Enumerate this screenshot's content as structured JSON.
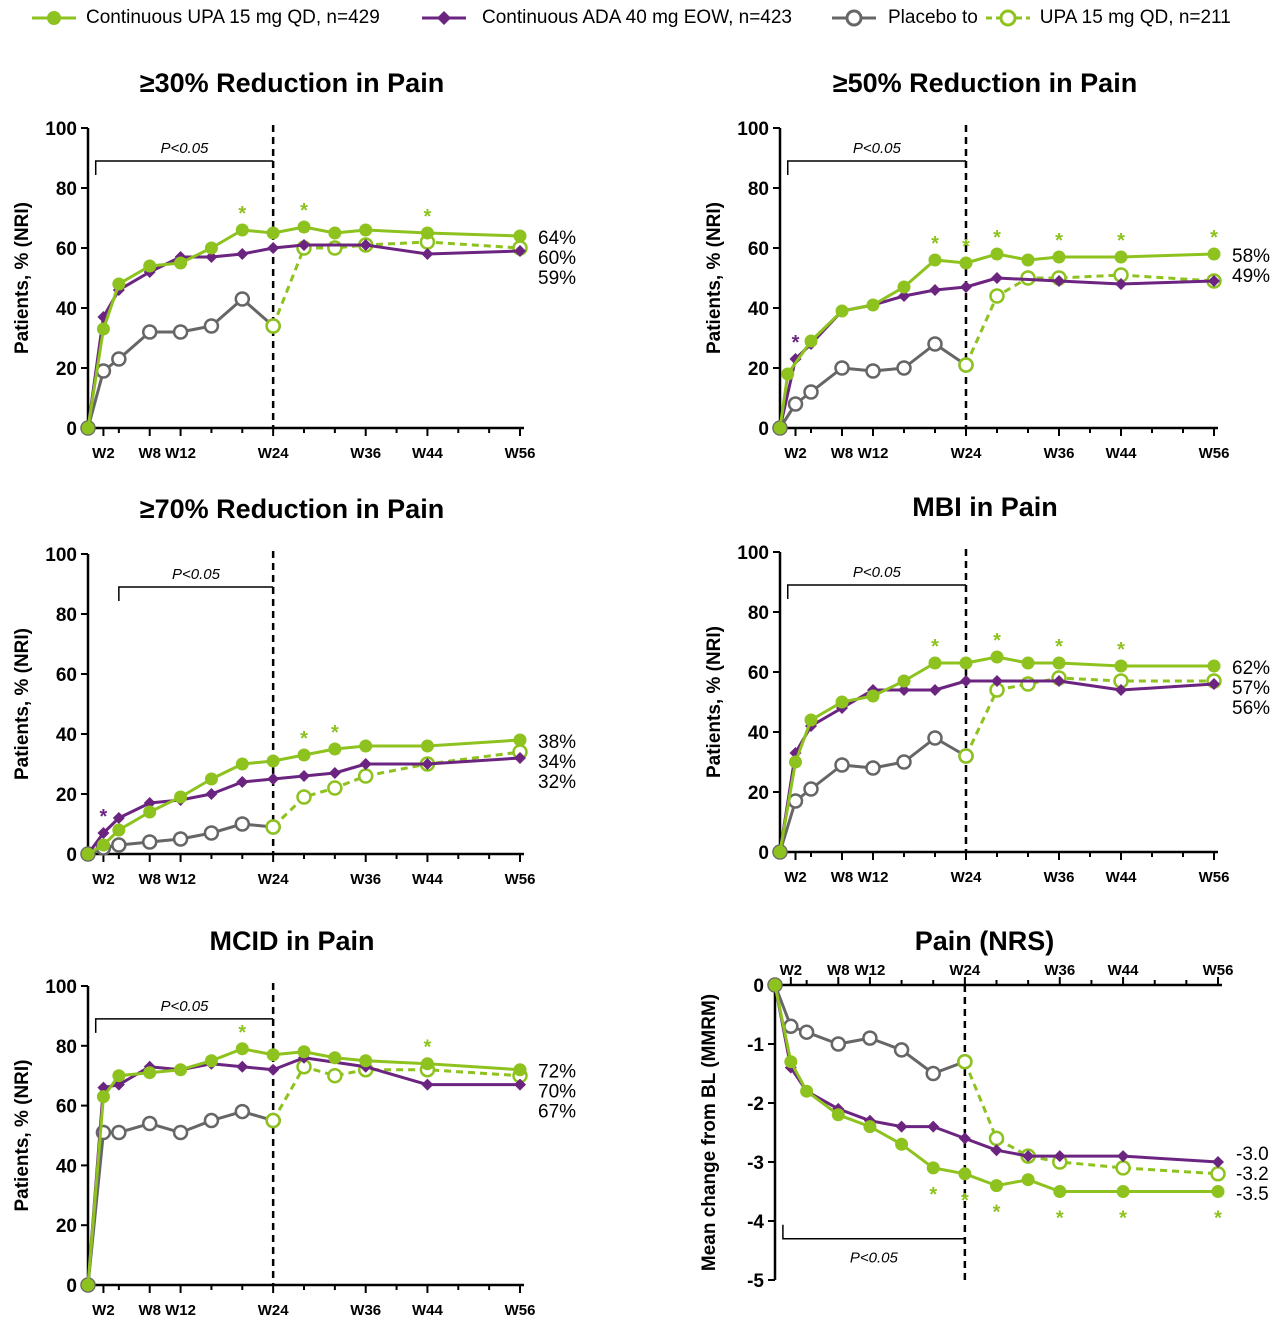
{
  "colors": {
    "upa": "#8dc21f",
    "ada": "#6b2480",
    "pbo": "#666666",
    "axis": "#000000"
  },
  "legend": {
    "upa": "Continuous UPA 15 mg QD, n=429",
    "ada": "Continuous ADA 40 mg EOW, n=423",
    "pbo_prefix": "Placebo to",
    "pbo_suffix": "UPA 15 mg QD, n=211"
  },
  "chart_data": [
    {
      "type": "line",
      "title": "≥30% Reduction in Pain",
      "ylabel": "Patients, % (NRI)",
      "ylim": [
        0,
        100
      ],
      "yticks": [
        0,
        20,
        40,
        60,
        80,
        100
      ],
      "xticks": [
        {
          "w": 2,
          "label": "W2"
        },
        {
          "w": 8,
          "label": "W8"
        },
        {
          "w": 12,
          "label": "W12"
        },
        {
          "w": 24,
          "label": "W24"
        },
        {
          "w": 36,
          "label": "W36"
        },
        {
          "w": 44,
          "label": "W44"
        },
        {
          "w": 56,
          "label": "W56"
        }
      ],
      "pvalue": {
        "text": "P<0.05",
        "from": 1,
        "to": 24
      },
      "series": [
        {
          "name": "Continuous UPA 15 mg QD",
          "x": [
            0,
            2,
            4,
            8,
            12,
            16,
            20,
            24,
            28,
            32,
            36,
            44,
            56
          ],
          "y": [
            0,
            33,
            48,
            54,
            55,
            60,
            66,
            65,
            67,
            65,
            66,
            65,
            64
          ]
        },
        {
          "name": "Continuous ADA 40 mg EOW",
          "x": [
            0,
            2,
            4,
            8,
            12,
            16,
            20,
            24,
            28,
            36,
            44,
            56
          ],
          "y": [
            0,
            37,
            46,
            52,
            57,
            57,
            58,
            60,
            61,
            61,
            58,
            59
          ]
        },
        {
          "name": "Placebo",
          "x": [
            0,
            2,
            4,
            8,
            12,
            16,
            20,
            24
          ],
          "y": [
            0,
            19,
            23,
            32,
            32,
            34,
            43,
            34
          ]
        },
        {
          "name": "UPA 15 mg QD (from placebo)",
          "x": [
            24,
            28,
            32,
            36,
            44,
            56
          ],
          "y": [
            34,
            60,
            60,
            61,
            62,
            60
          ]
        }
      ],
      "end_labels": [
        "64%",
        "60%",
        "59%"
      ],
      "stars": [
        {
          "x": 20,
          "y": 66,
          "series": "upa"
        },
        {
          "x": 28,
          "y": 67,
          "series": "upa"
        },
        {
          "x": 44,
          "y": 65,
          "series": "upa"
        }
      ]
    },
    {
      "type": "line",
      "title": "≥50% Reduction in Pain",
      "ylabel": "Patients, % (NRI)",
      "ylim": [
        0,
        100
      ],
      "yticks": [
        0,
        20,
        40,
        60,
        80,
        100
      ],
      "xticks": [
        {
          "w": 2,
          "label": "W2"
        },
        {
          "w": 8,
          "label": "W8"
        },
        {
          "w": 12,
          "label": "W12"
        },
        {
          "w": 24,
          "label": "W24"
        },
        {
          "w": 36,
          "label": "W36"
        },
        {
          "w": 44,
          "label": "W44"
        },
        {
          "w": 56,
          "label": "W56"
        }
      ],
      "pvalue": {
        "text": "P<0.05",
        "from": 1,
        "to": 24
      },
      "series": [
        {
          "name": "Continuous UPA 15 mg QD",
          "x": [
            0,
            1,
            4,
            8,
            12,
            16,
            20,
            24,
            28,
            32,
            36,
            44,
            56
          ],
          "y": [
            0,
            18,
            29,
            39,
            41,
            47,
            56,
            55,
            58,
            56,
            57,
            57,
            58
          ]
        },
        {
          "name": "Continuous ADA 40 mg EOW",
          "x": [
            0,
            2,
            4,
            8,
            12,
            16,
            20,
            24,
            28,
            36,
            44,
            56
          ],
          "y": [
            0,
            23,
            28,
            39,
            41,
            44,
            46,
            47,
            50,
            49,
            48,
            49
          ]
        },
        {
          "name": "Placebo",
          "x": [
            0,
            2,
            4,
            8,
            12,
            16,
            20,
            24
          ],
          "y": [
            0,
            8,
            12,
            20,
            19,
            20,
            28,
            21
          ]
        },
        {
          "name": "UPA 15 mg QD (from placebo)",
          "x": [
            24,
            28,
            32,
            36,
            44,
            56
          ],
          "y": [
            21,
            44,
            50,
            50,
            51,
            49
          ]
        }
      ],
      "end_labels": [
        "58%",
        "49%"
      ],
      "stars": [
        {
          "x": 2,
          "y": 23,
          "series": "ada"
        },
        {
          "x": 20,
          "y": 56,
          "series": "upa"
        },
        {
          "x": 24,
          "y": 55,
          "series": "upa"
        },
        {
          "x": 28,
          "y": 58,
          "series": "upa"
        },
        {
          "x": 36,
          "y": 57,
          "series": "upa"
        },
        {
          "x": 44,
          "y": 57,
          "series": "upa"
        },
        {
          "x": 56,
          "y": 58,
          "series": "upa"
        }
      ]
    },
    {
      "type": "line",
      "title": "≥70% Reduction in Pain",
      "ylabel": "Patients, % (NRI)",
      "ylim": [
        0,
        100
      ],
      "yticks": [
        0,
        20,
        40,
        60,
        80,
        100
      ],
      "xticks": [
        {
          "w": 2,
          "label": "W2"
        },
        {
          "w": 8,
          "label": "W8"
        },
        {
          "w": 12,
          "label": "W12"
        },
        {
          "w": 24,
          "label": "W24"
        },
        {
          "w": 36,
          "label": "W36"
        },
        {
          "w": 44,
          "label": "W44"
        },
        {
          "w": 56,
          "label": "W56"
        }
      ],
      "pvalue": {
        "text": "P<0.05",
        "from": 4,
        "to": 24
      },
      "series": [
        {
          "name": "Continuous UPA 15 mg QD",
          "x": [
            0,
            2,
            4,
            8,
            12,
            16,
            20,
            24,
            28,
            32,
            36,
            44,
            56
          ],
          "y": [
            0,
            3,
            8,
            14,
            19,
            25,
            30,
            31,
            33,
            35,
            36,
            36,
            38
          ]
        },
        {
          "name": "Continuous ADA 40 mg EOW",
          "x": [
            0,
            2,
            4,
            8,
            12,
            16,
            20,
            24,
            28,
            32,
            36,
            44,
            56
          ],
          "y": [
            0,
            7,
            12,
            17,
            18,
            20,
            24,
            25,
            26,
            27,
            30,
            30,
            32
          ]
        },
        {
          "name": "Placebo",
          "x": [
            0,
            2,
            4,
            8,
            12,
            16,
            20,
            24
          ],
          "y": [
            0,
            2,
            3,
            4,
            5,
            7,
            10,
            9
          ]
        },
        {
          "name": "UPA 15 mg QD (from placebo)",
          "x": [
            24,
            28,
            32,
            36,
            44,
            56
          ],
          "y": [
            9,
            19,
            22,
            26,
            30,
            34
          ]
        }
      ],
      "end_labels": [
        "38%",
        "34%",
        "32%"
      ],
      "stars": [
        {
          "x": 2,
          "y": 7,
          "series": "ada"
        },
        {
          "x": 28,
          "y": 33,
          "series": "upa"
        },
        {
          "x": 32,
          "y": 35,
          "series": "upa"
        }
      ]
    },
    {
      "type": "line",
      "title": "MBI in Pain",
      "ylabel": "Patients, % (NRI)",
      "ylim": [
        0,
        100
      ],
      "yticks": [
        0,
        20,
        40,
        60,
        80,
        100
      ],
      "xticks": [
        {
          "w": 2,
          "label": "W2"
        },
        {
          "w": 8,
          "label": "W8"
        },
        {
          "w": 12,
          "label": "W12"
        },
        {
          "w": 24,
          "label": "W24"
        },
        {
          "w": 36,
          "label": "W36"
        },
        {
          "w": 44,
          "label": "W44"
        },
        {
          "w": 56,
          "label": "W56"
        }
      ],
      "pvalue": {
        "text": "P<0.05",
        "from": 1,
        "to": 24
      },
      "series": [
        {
          "name": "Continuous UPA 15 mg QD",
          "x": [
            0,
            2,
            4,
            8,
            12,
            16,
            20,
            24,
            28,
            32,
            36,
            44,
            56
          ],
          "y": [
            0,
            30,
            44,
            50,
            52,
            57,
            63,
            63,
            65,
            63,
            63,
            62,
            62
          ]
        },
        {
          "name": "Continuous ADA 40 mg EOW",
          "x": [
            0,
            2,
            4,
            8,
            12,
            16,
            20,
            24,
            28,
            36,
            44,
            56
          ],
          "y": [
            0,
            33,
            42,
            48,
            54,
            54,
            54,
            57,
            57,
            57,
            54,
            56
          ]
        },
        {
          "name": "Placebo",
          "x": [
            0,
            2,
            4,
            8,
            12,
            16,
            20,
            24
          ],
          "y": [
            0,
            17,
            21,
            29,
            28,
            30,
            38,
            32
          ]
        },
        {
          "name": "UPA 15 mg QD (from placebo)",
          "x": [
            24,
            28,
            32,
            36,
            44,
            56
          ],
          "y": [
            32,
            54,
            56,
            58,
            57,
            57
          ]
        }
      ],
      "end_labels": [
        "62%",
        "57%",
        "56%"
      ],
      "stars": [
        {
          "x": 20,
          "y": 63,
          "series": "upa"
        },
        {
          "x": 28,
          "y": 65,
          "series": "upa"
        },
        {
          "x": 36,
          "y": 63,
          "series": "upa"
        },
        {
          "x": 44,
          "y": 62,
          "series": "upa"
        }
      ]
    },
    {
      "type": "line",
      "title": "MCID in Pain",
      "ylabel": "Patients, % (NRI)",
      "ylim": [
        0,
        100
      ],
      "yticks": [
        0,
        20,
        40,
        60,
        80,
        100
      ],
      "xticks": [
        {
          "w": 2,
          "label": "W2"
        },
        {
          "w": 8,
          "label": "W8"
        },
        {
          "w": 12,
          "label": "W12"
        },
        {
          "w": 24,
          "label": "W24"
        },
        {
          "w": 36,
          "label": "W36"
        },
        {
          "w": 44,
          "label": "W44"
        },
        {
          "w": 56,
          "label": "W56"
        }
      ],
      "pvalue": {
        "text": "P<0.05",
        "from": 1,
        "to": 24
      },
      "series": [
        {
          "name": "Continuous UPA 15 mg QD",
          "x": [
            0,
            2,
            4,
            8,
            12,
            16,
            20,
            24,
            28,
            32,
            36,
            44,
            56
          ],
          "y": [
            0,
            63,
            70,
            71,
            72,
            75,
            79,
            77,
            78,
            76,
            75,
            74,
            72
          ]
        },
        {
          "name": "Continuous ADA 40 mg EOW",
          "x": [
            0,
            2,
            4,
            8,
            12,
            16,
            20,
            24,
            28,
            36,
            44,
            56
          ],
          "y": [
            0,
            66,
            67,
            73,
            72,
            74,
            73,
            72,
            76,
            73,
            67,
            67
          ]
        },
        {
          "name": "Placebo",
          "x": [
            0,
            2,
            4,
            8,
            12,
            16,
            20,
            24
          ],
          "y": [
            0,
            51,
            51,
            54,
            51,
            55,
            58,
            55
          ]
        },
        {
          "name": "UPA 15 mg QD (from placebo)",
          "x": [
            24,
            28,
            32,
            36,
            44,
            56
          ],
          "y": [
            55,
            73,
            70,
            72,
            72,
            70
          ]
        }
      ],
      "end_labels": [
        "72%",
        "70%",
        "67%"
      ],
      "stars": [
        {
          "x": 20,
          "y": 79,
          "series": "upa"
        },
        {
          "x": 44,
          "y": 74,
          "series": "upa"
        }
      ]
    },
    {
      "type": "line",
      "title": "Pain (NRS)",
      "ylabel": "Mean change from BL (MMRM)",
      "ylim": [
        -5,
        0
      ],
      "yticks": [
        -5,
        -4,
        -3,
        -2,
        -1,
        0
      ],
      "xaxis_top": true,
      "xticks": [
        {
          "w": 2,
          "label": "W2"
        },
        {
          "w": 8,
          "label": "W8"
        },
        {
          "w": 12,
          "label": "W12"
        },
        {
          "w": 24,
          "label": "W24"
        },
        {
          "w": 36,
          "label": "W36"
        },
        {
          "w": 44,
          "label": "W44"
        },
        {
          "w": 56,
          "label": "W56"
        }
      ],
      "pvalue": {
        "text": "P<0.05",
        "from": 1,
        "to": 24
      },
      "series": [
        {
          "name": "Continuous UPA 15 mg QD",
          "x": [
            0,
            2,
            4,
            8,
            12,
            16,
            20,
            24,
            28,
            32,
            36,
            44,
            56
          ],
          "y": [
            0,
            -1.3,
            -1.8,
            -2.2,
            -2.4,
            -2.7,
            -3.1,
            -3.2,
            -3.4,
            -3.3,
            -3.5,
            -3.5,
            -3.5
          ]
        },
        {
          "name": "Continuous ADA 40 mg EOW",
          "x": [
            0,
            2,
            4,
            8,
            12,
            16,
            20,
            24,
            28,
            32,
            36,
            44,
            56
          ],
          "y": [
            0,
            -1.4,
            -1.8,
            -2.1,
            -2.3,
            -2.4,
            -2.4,
            -2.6,
            -2.8,
            -2.9,
            -2.9,
            -2.9,
            -3.0
          ]
        },
        {
          "name": "Placebo",
          "x": [
            0,
            2,
            4,
            8,
            12,
            16,
            20,
            24
          ],
          "y": [
            0,
            -0.7,
            -0.8,
            -1.0,
            -0.9,
            -1.1,
            -1.5,
            -1.3
          ]
        },
        {
          "name": "UPA 15 mg QD (from placebo)",
          "x": [
            24,
            28,
            32,
            36,
            44,
            56
          ],
          "y": [
            -1.3,
            -2.6,
            -2.9,
            -3.0,
            -3.1,
            -3.2
          ]
        }
      ],
      "end_labels": [
        "-3.0",
        "-3.2",
        "-3.5"
      ],
      "stars": [
        {
          "x": 20,
          "y": -3.1,
          "series": "upa",
          "below": true
        },
        {
          "x": 24,
          "y": -3.2,
          "series": "upa",
          "below": true
        },
        {
          "x": 28,
          "y": -3.4,
          "series": "upa",
          "below": true
        },
        {
          "x": 36,
          "y": -3.5,
          "series": "upa",
          "below": true
        },
        {
          "x": 44,
          "y": -3.5,
          "series": "upa",
          "below": true
        },
        {
          "x": 56,
          "y": -3.5,
          "series": "upa",
          "below": true
        }
      ]
    }
  ]
}
